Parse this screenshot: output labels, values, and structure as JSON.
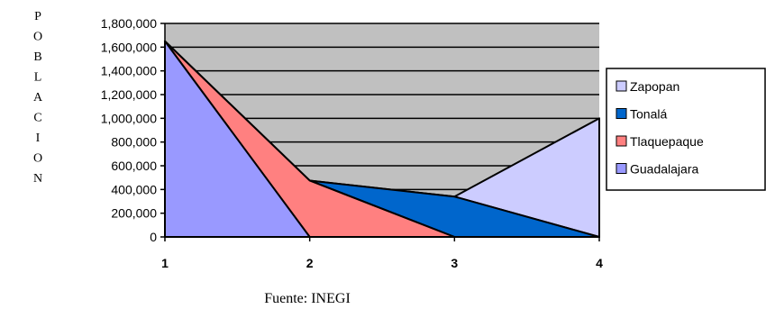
{
  "chart_data": {
    "type": "area",
    "categories": [
      "1",
      "2",
      "3",
      "4"
    ],
    "series": [
      {
        "name": "Guadalajara",
        "values": [
          1650000,
          0,
          0,
          0
        ],
        "color": "#9999ff"
      },
      {
        "name": "Tlaquepaque",
        "values": [
          0,
          475000,
          0,
          0
        ],
        "color": "#ff8080"
      },
      {
        "name": "Tonalá",
        "values": [
          0,
          0,
          340000,
          0
        ],
        "color": "#0066cc"
      },
      {
        "name": "Zapopan",
        "values": [
          0,
          0,
          0,
          1000000
        ],
        "color": "#ccccff"
      }
    ],
    "ylabel": "POBLACION",
    "ylim": [
      0,
      1800000
    ],
    "yticks": [
      0,
      200000,
      400000,
      600000,
      800000,
      1000000,
      1200000,
      1400000,
      1600000,
      1800000
    ],
    "ytick_labels": [
      "0",
      "200,000",
      "400,000",
      "600,000",
      "800,000",
      "1,000,000",
      "1,200,000",
      "1,400,000",
      "1,600,000",
      "1,800,000"
    ],
    "grid": true,
    "plot_background": "#c0c0c0",
    "legend_position": "right",
    "legend_order": [
      "Zapopan",
      "Tonalá",
      "Tlaquepaque",
      "Guadalajara"
    ],
    "source": "Fuente: INEGI"
  }
}
